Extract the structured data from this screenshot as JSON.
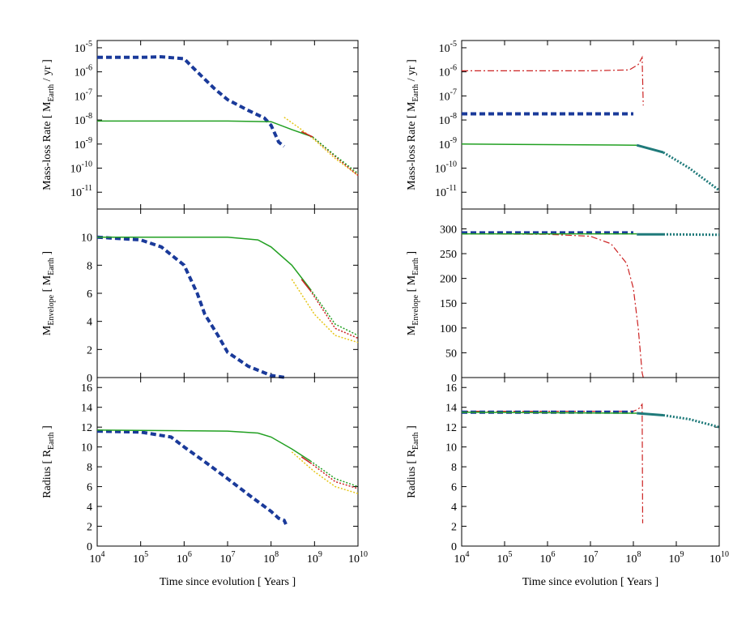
{
  "chart_data": [
    {
      "type": "line",
      "yscale": "log",
      "xscale": "log",
      "ylabel": [
        "Mass-loss Rate [ M",
        "Earth",
        " / yr ]"
      ],
      "xlim": [
        10000,
        10000000000
      ],
      "xticks": [
        10000,
        100000,
        1000000,
        10000000,
        100000000,
        1000000000,
        10000000000
      ],
      "ylim": [
        2e-12,
        2e-05
      ],
      "yticks": [
        {
          "value": 1e-11,
          "label": [
            "10",
            "-11"
          ]
        },
        {
          "value": 1e-10,
          "label": [
            "10",
            "-10"
          ]
        },
        {
          "value": 1e-09,
          "label": [
            "10",
            "-9"
          ]
        },
        {
          "value": 1e-08,
          "label": [
            "10",
            "-8"
          ]
        },
        {
          "value": 1e-07,
          "label": [
            "10",
            "-7"
          ]
        },
        {
          "value": 1e-06,
          "label": [
            "10",
            "-6"
          ]
        },
        {
          "value": 1e-05,
          "label": [
            "10",
            "-5"
          ]
        }
      ],
      "series": [
        {
          "color": "#1a3a9a",
          "style": "dashed",
          "width": 4,
          "x": [
            10000,
            100000,
            300000,
            1000000,
            2000000,
            5000000,
            10000000,
            30000000,
            70000000,
            100000000,
            150000000,
            200000000
          ],
          "values": [
            4e-06,
            4e-06,
            4.2e-06,
            3.5e-06,
            1e-06,
            2e-07,
            7e-08,
            2.5e-08,
            1.2e-08,
            6e-09,
            1.2e-09,
            8e-10
          ]
        },
        {
          "color": "#e6c619",
          "style": "dotted",
          "width": 1.5,
          "x": [
            200000000,
            500000000,
            1000000000,
            3000000000,
            10000000000
          ],
          "values": [
            1.3e-08,
            4e-09,
            1.5e-09,
            2.5e-10,
            5e-11
          ]
        },
        {
          "color": "#cc2222",
          "style": "dotted",
          "width": 1.5,
          "x": [
            900000000,
            3000000000,
            10000000000
          ],
          "values": [
            2e-09,
            3e-10,
            5e-11
          ]
        },
        {
          "color": "#22a022",
          "style": "dotted",
          "width": 1.5,
          "x": [
            900000000,
            3000000000,
            10000000000
          ],
          "values": [
            2e-09,
            3.3e-10,
            6e-11
          ]
        },
        {
          "color": "#22a022",
          "style": "solid",
          "width": 1.5,
          "x": [
            10000,
            10000000,
            100000000,
            300000000,
            900000000
          ],
          "values": [
            9e-09,
            9e-09,
            8.5e-09,
            4e-09,
            2e-09
          ]
        },
        {
          "color": "#cc2222",
          "style": "solid",
          "width": 1.5,
          "x": [
            500000000,
            900000000
          ],
          "values": [
            3.3e-09,
            2e-09
          ]
        }
      ]
    },
    {
      "type": "line",
      "yscale": "log",
      "xscale": "log",
      "ylabel": [
        "Mass-loss Rate [ M",
        "Earth",
        " / yr ]"
      ],
      "xlim": [
        10000,
        10000000000
      ],
      "xticks": [
        10000,
        100000,
        1000000,
        10000000,
        100000000,
        1000000000,
        10000000000
      ],
      "ylim": [
        2e-12,
        2e-05
      ],
      "yticks": [
        {
          "value": 1e-11,
          "label": [
            "10",
            "-11"
          ]
        },
        {
          "value": 1e-10,
          "label": [
            "10",
            "-10"
          ]
        },
        {
          "value": 1e-09,
          "label": [
            "10",
            "-9"
          ]
        },
        {
          "value": 1e-08,
          "label": [
            "10",
            "-8"
          ]
        },
        {
          "value": 1e-07,
          "label": [
            "10",
            "-7"
          ]
        },
        {
          "value": 1e-06,
          "label": [
            "10",
            "-6"
          ]
        },
        {
          "value": 1e-05,
          "label": [
            "10",
            "-5"
          ]
        }
      ],
      "series": [
        {
          "color": "#cc2222",
          "style": "dashdot",
          "width": 1.2,
          "x": [
            10000,
            10000000,
            80000000,
            130000000,
            160000000,
            170000000
          ],
          "values": [
            1.1e-06,
            1.1e-06,
            1.2e-06,
            2e-06,
            4e-06,
            4e-08
          ]
        },
        {
          "color": "#1a3a9a",
          "style": "dashed",
          "width": 4,
          "x": [
            10000,
            100000000
          ],
          "values": [
            1.8e-08,
            1.8e-08
          ]
        },
        {
          "color": "#22a022",
          "style": "solid",
          "width": 1.5,
          "x": [
            10000,
            120000000
          ],
          "values": [
            1e-09,
            9e-10
          ]
        },
        {
          "color": "#1f7a7a",
          "style": "solid",
          "width": 3,
          "x": [
            120000000,
            500000000
          ],
          "values": [
            9e-10,
            4.5e-10
          ]
        },
        {
          "color": "#1f7a7a",
          "style": "dotted",
          "width": 3,
          "x": [
            500000000,
            2000000000,
            10000000000
          ],
          "values": [
            4.5e-10,
            1e-10,
            1.2e-11
          ]
        }
      ]
    },
    {
      "type": "line",
      "xscale": "log",
      "ylabel": [
        "M",
        "Envelope",
        "  [ M",
        "Earth",
        " ]"
      ],
      "xlim": [
        10000,
        10000000000
      ],
      "xticks": [
        10000,
        100000,
        1000000,
        10000000,
        100000000,
        1000000000,
        10000000000
      ],
      "ylim": [
        0,
        12
      ],
      "yticks": [
        0,
        2,
        4,
        6,
        8,
        10
      ],
      "series": [
        {
          "color": "#1a3a9a",
          "style": "dashed",
          "width": 4,
          "x": [
            10000,
            100000,
            300000,
            1000000,
            2000000,
            3000000,
            6000000,
            10000000,
            30000000,
            100000000,
            200000000
          ],
          "values": [
            10,
            9.8,
            9.3,
            8,
            6,
            4.5,
            3,
            1.8,
            0.8,
            0.15,
            0.02
          ]
        },
        {
          "color": "#e6c619",
          "style": "dotted",
          "width": 1.5,
          "x": [
            300000000,
            1000000000,
            3000000000,
            10000000000
          ],
          "values": [
            7,
            4.5,
            3,
            2.5
          ]
        },
        {
          "color": "#cc2222",
          "style": "dotted",
          "width": 1.5,
          "x": [
            800000000,
            3000000000,
            10000000000
          ],
          "values": [
            6.2,
            3.5,
            2.8
          ]
        },
        {
          "color": "#22a022",
          "style": "dotted",
          "width": 1.5,
          "x": [
            800000000,
            3000000000,
            10000000000
          ],
          "values": [
            6.3,
            3.8,
            3
          ]
        },
        {
          "color": "#22a022",
          "style": "solid",
          "width": 1.5,
          "x": [
            10000,
            10000000,
            50000000,
            100000000,
            300000000,
            800000000
          ],
          "values": [
            10,
            10,
            9.8,
            9.3,
            8,
            6.3
          ]
        },
        {
          "color": "#cc2222",
          "style": "solid",
          "width": 1.5,
          "x": [
            500000000,
            800000000
          ],
          "values": [
            7,
            6.2
          ]
        }
      ]
    },
    {
      "type": "line",
      "xscale": "log",
      "ylabel": [
        "M",
        "Envelope",
        "  [ M",
        "Earth",
        " ]"
      ],
      "xlim": [
        10000,
        10000000000
      ],
      "xticks": [
        10000,
        100000,
        1000000,
        10000000,
        100000000,
        1000000000,
        10000000000
      ],
      "ylim": [
        0,
        340
      ],
      "yticks": [
        0,
        50,
        100,
        150,
        200,
        250,
        300
      ],
      "series": [
        {
          "color": "#cc2222",
          "style": "dashdot",
          "width": 1.2,
          "x": [
            10000,
            1000000,
            10000000,
            30000000,
            70000000,
            100000000,
            130000000,
            160000000,
            170000000
          ],
          "values": [
            290,
            289,
            285,
            270,
            230,
            180,
            100,
            10,
            0
          ]
        },
        {
          "color": "#1a3a9a",
          "style": "dashed",
          "width": 4,
          "x": [
            10000,
            100000000
          ],
          "values": [
            292,
            292
          ]
        },
        {
          "color": "#22a022",
          "style": "solid",
          "width": 1.5,
          "x": [
            10000,
            120000000
          ],
          "values": [
            290,
            290
          ]
        },
        {
          "color": "#1f7a7a",
          "style": "solid",
          "width": 3,
          "x": [
            120000000,
            500000000
          ],
          "values": [
            289,
            289
          ]
        },
        {
          "color": "#1f7a7a",
          "style": "dotted",
          "width": 3,
          "x": [
            500000000,
            10000000000
          ],
          "values": [
            289,
            288
          ]
        }
      ]
    },
    {
      "type": "line",
      "xscale": "log",
      "ylabel": [
        "Radius  [ R",
        "Earth",
        " ]"
      ],
      "xlabel": "Time since evolution  [ Years ]",
      "xlim": [
        10000,
        10000000000
      ],
      "xticks": [
        {
          "value": 10000,
          "label": [
            "10",
            "4"
          ]
        },
        {
          "value": 100000,
          "label": [
            "10",
            "5"
          ]
        },
        {
          "value": 1000000,
          "label": [
            "10",
            "6"
          ]
        },
        {
          "value": 10000000,
          "label": [
            "10",
            "7"
          ]
        },
        {
          "value": 100000000,
          "label": [
            "10",
            "8"
          ]
        },
        {
          "value": 1000000000,
          "label": [
            "10",
            "9"
          ]
        },
        {
          "value": 10000000000,
          "label": [
            "10",
            "10"
          ]
        }
      ],
      "ylim": [
        0,
        17
      ],
      "yticks": [
        0,
        2,
        4,
        6,
        8,
        10,
        12,
        14,
        16
      ],
      "series": [
        {
          "color": "#1a3a9a",
          "style": "dashed",
          "width": 4,
          "x": [
            10000,
            100000,
            500000,
            1000000,
            3000000,
            10000000,
            30000000,
            100000000,
            150000000,
            200000000,
            220000000
          ],
          "values": [
            11.6,
            11.5,
            11,
            10,
            8.5,
            6.8,
            5.2,
            3.5,
            2.8,
            2.6,
            2.2
          ]
        },
        {
          "color": "#e6c619",
          "style": "dotted",
          "width": 1.5,
          "x": [
            300000000,
            1000000000,
            3000000000,
            10000000000
          ],
          "values": [
            9.5,
            7.5,
            6,
            5.3
          ]
        },
        {
          "color": "#cc2222",
          "style": "dotted",
          "width": 1.5,
          "x": [
            800000000,
            3000000000,
            10000000000
          ],
          "values": [
            8.4,
            6.5,
            5.8
          ]
        },
        {
          "color": "#22a022",
          "style": "dotted",
          "width": 1.5,
          "x": [
            800000000,
            3000000000,
            10000000000
          ],
          "values": [
            8.6,
            6.8,
            6
          ]
        },
        {
          "color": "#22a022",
          "style": "solid",
          "width": 1.5,
          "x": [
            10000,
            10000000,
            50000000,
            100000000,
            300000000,
            800000000
          ],
          "values": [
            11.7,
            11.6,
            11.4,
            11,
            9.8,
            8.6
          ]
        },
        {
          "color": "#cc2222",
          "style": "solid",
          "width": 1.5,
          "x": [
            500000000,
            800000000
          ],
          "values": [
            9,
            8.4
          ]
        }
      ]
    },
    {
      "type": "line",
      "xscale": "log",
      "ylabel": [
        "Radius  [ R",
        "Earth",
        " ]"
      ],
      "xlabel": "Time since evolution  [ Years ]",
      "xlim": [
        10000,
        10000000000
      ],
      "xticks": [
        {
          "value": 10000,
          "label": [
            "10",
            "4"
          ]
        },
        {
          "value": 100000,
          "label": [
            "10",
            "5"
          ]
        },
        {
          "value": 1000000,
          "label": [
            "10",
            "6"
          ]
        },
        {
          "value": 10000000,
          "label": [
            "10",
            "7"
          ]
        },
        {
          "value": 100000000,
          "label": [
            "10",
            "8"
          ]
        },
        {
          "value": 1000000000,
          "label": [
            "10",
            "9"
          ]
        },
        {
          "value": 10000000000,
          "label": [
            "10",
            "10"
          ]
        }
      ],
      "ylim": [
        0,
        17
      ],
      "yticks": [
        0,
        2,
        4,
        6,
        8,
        10,
        12,
        14,
        16
      ],
      "series": [
        {
          "color": "#cc2222",
          "style": "dashdot",
          "width": 1.2,
          "x": [
            10000,
            100000000,
            130000000,
            160000000,
            165000000
          ],
          "values": [
            13.6,
            13.6,
            13.8,
            14.3,
            2.3
          ]
        },
        {
          "color": "#1a3a9a",
          "style": "dashed",
          "width": 4,
          "x": [
            10000,
            100000000
          ],
          "values": [
            13.5,
            13.5
          ]
        },
        {
          "color": "#22a022",
          "style": "solid",
          "width": 1.5,
          "x": [
            10000,
            120000000
          ],
          "values": [
            13.5,
            13.4
          ]
        },
        {
          "color": "#1f7a7a",
          "style": "solid",
          "width": 3,
          "x": [
            120000000,
            500000000
          ],
          "values": [
            13.4,
            13.2
          ]
        },
        {
          "color": "#1f7a7a",
          "style": "dotted",
          "width": 3,
          "x": [
            500000000,
            2000000000,
            10000000000
          ],
          "values": [
            13.2,
            12.8,
            12
          ]
        }
      ]
    }
  ]
}
